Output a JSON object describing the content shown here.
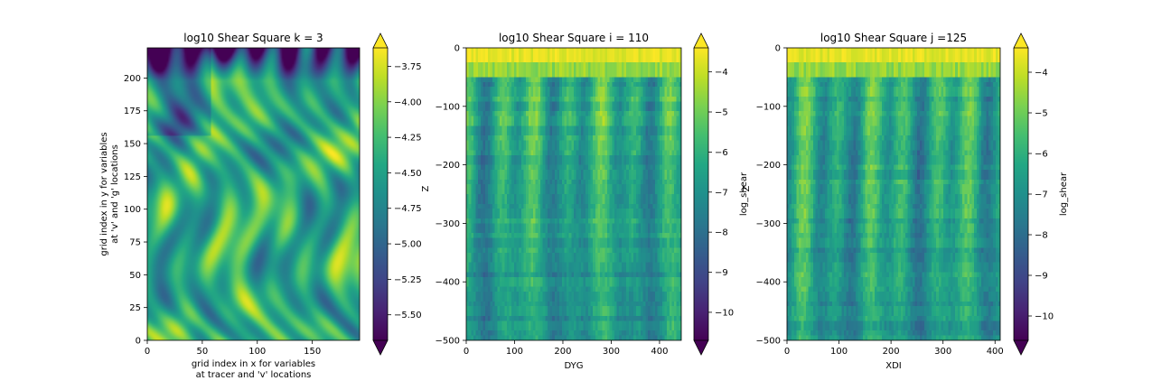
{
  "chart_data": [
    {
      "type": "heatmap",
      "title": "log10 Shear Square k = 3",
      "xlabel_lines": [
        "grid index in x for variables",
        "at tracer and 'v' locations"
      ],
      "ylabel_lines": [
        "grid index in y for variables",
        "at 'v' and 'g' locations"
      ],
      "xlim": [
        0,
        193
      ],
      "ylim": [
        0,
        223
      ],
      "xticks": [
        0,
        50,
        100,
        150
      ],
      "yticks": [
        0,
        25,
        50,
        75,
        100,
        125,
        150,
        175,
        200
      ],
      "x_tick_labels": [
        "0",
        "50",
        "100",
        "150"
      ],
      "y_tick_labels": [
        "0",
        "25",
        "50",
        "75",
        "100",
        "125",
        "150",
        "175",
        "200"
      ],
      "colormap": "viridis",
      "colorbar": {
        "label": "",
        "range": [
          -5.68,
          -3.62
        ],
        "extend": "both",
        "ticks": [
          -3.75,
          -4.0,
          -4.25,
          -4.5,
          -4.75,
          -5.0,
          -5.25,
          -5.5
        ],
        "tick_labels": [
          "−3.75",
          "−4.00",
          "−4.25",
          "−4.50",
          "−4.75",
          "−5.00",
          "−5.25",
          "−5.50"
        ]
      },
      "field_description": "turbulent filaments; dark (low) band near top y>200"
    },
    {
      "type": "heatmap",
      "title": "log10 Shear Square i = 110",
      "xlabel": "DYG",
      "ylabel": "Z",
      "xlim": [
        0,
        445
      ],
      "ylim": [
        -500,
        0
      ],
      "xticks": [
        0,
        100,
        200,
        300,
        400
      ],
      "yticks": [
        0,
        -100,
        -200,
        -300,
        -400,
        -500
      ],
      "x_tick_labels": [
        "0",
        "100",
        "200",
        "300",
        "400"
      ],
      "y_tick_labels": [
        "0",
        "−100",
        "−200",
        "−300",
        "−400",
        "−500"
      ],
      "colormap": "viridis",
      "colorbar": {
        "label": "log_shear",
        "range": [
          -10.7,
          -3.4
        ],
        "extend": "both",
        "ticks": [
          -4,
          -5,
          -6,
          -7,
          -8,
          -9,
          -10
        ],
        "tick_labels": [
          "−4",
          "−5",
          "−6",
          "−7",
          "−8",
          "−9",
          "−10"
        ]
      }
    },
    {
      "type": "heatmap",
      "title": "log10 Shear Square j =125",
      "xlabel": "XDI",
      "ylabel": "Z",
      "xlim": [
        0,
        410
      ],
      "ylim": [
        -500,
        0
      ],
      "xticks": [
        0,
        100,
        200,
        300,
        400
      ],
      "yticks": [
        0,
        -100,
        -200,
        -300,
        -400,
        -500
      ],
      "x_tick_labels": [
        "0",
        "100",
        "200",
        "300",
        "400"
      ],
      "y_tick_labels": [
        "0",
        "−100",
        "−200",
        "−300",
        "−400",
        "−500"
      ],
      "colormap": "viridis",
      "colorbar": {
        "label": "log_shear",
        "range": [
          -10.6,
          -3.4
        ],
        "extend": "both",
        "ticks": [
          -4,
          -5,
          -6,
          -7,
          -8,
          -9,
          -10
        ],
        "tick_labels": [
          "−4",
          "−5",
          "−6",
          "−7",
          "−8",
          "−9",
          "−10"
        ]
      }
    }
  ]
}
